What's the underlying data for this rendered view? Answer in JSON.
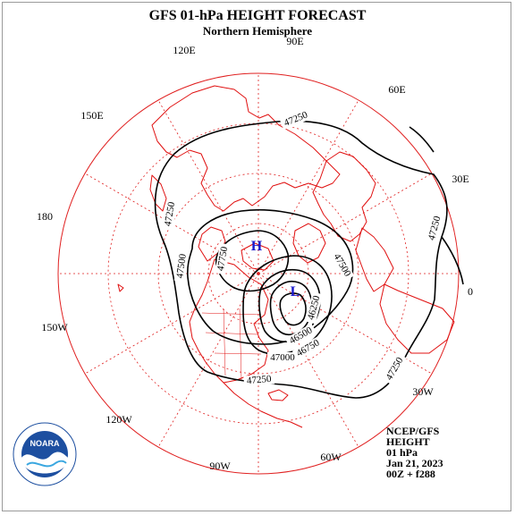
{
  "title": "GFS 01-hPa HEIGHT FORECAST",
  "subtitle": "Northern Hemisphere",
  "longitude_labels": {
    "e90": "90E",
    "e120": "120E",
    "e60": "60E",
    "e150": "150E",
    "e30": "30E",
    "d180": "180",
    "d0": "0",
    "w150": "150W",
    "w30": "30W",
    "w120": "120W",
    "w60": "60W",
    "w90": "90W"
  },
  "contour_labels": {
    "c47250_top": "47250",
    "c47250_left": "47250",
    "c47250_right": "47250",
    "c47250_br": "47250",
    "c47250_bottom": "47250",
    "c47500_left": "47500",
    "c47500_right": "47500",
    "c47750": "47750",
    "c46250": "46250",
    "c46500": "46500",
    "c46750": "46750",
    "c47000": "47000"
  },
  "pressure_centers": {
    "high": "H",
    "low": "L"
  },
  "info_block": {
    "line1": "NCEP/GFS",
    "line2": "HEIGHT",
    "line3": "01 hPa",
    "line4": "Jan 21, 2023",
    "line5": "00Z + f288"
  },
  "logo": {
    "text": "NOARA",
    "ring_text": "NATIONAL OCEANIC AND ATMOSPHERIC ADMINISTRATION · U.S. DEPARTMENT OF COMMERCE"
  },
  "colors": {
    "grid": "#e02020",
    "coast": "#e01010",
    "contour": "#000000",
    "high": "#1a1acc",
    "low": "#1a1acc",
    "noaa_blue": "#1d4fa0"
  }
}
